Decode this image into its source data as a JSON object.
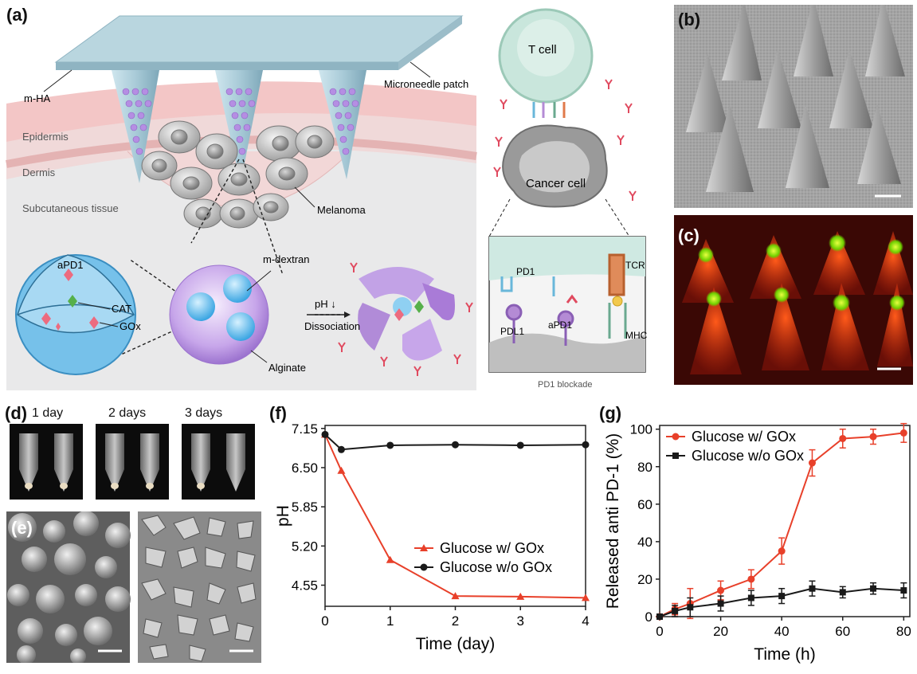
{
  "panels": {
    "a": "(a)",
    "b": "(b)",
    "c": "(c)",
    "d": "(d)",
    "e": "(e)",
    "f": "(f)",
    "g": "(g)"
  },
  "schematic": {
    "m_ha": "m-HA",
    "microneedle_patch": "Microneedle patch",
    "epidermis": "Epidermis",
    "dermis": "Dermis",
    "subcutaneous": "Subcutaneous tissue",
    "melanoma": "Melanoma",
    "apd1": "aPD1",
    "cat": "CAT",
    "gox": "GOx",
    "m_dextran": "m-dextran",
    "alginate": "Alginate",
    "ph": "pH ↓",
    "dissociation": "Dissociation",
    "t_cell": "T cell",
    "cancer_cell": "Cancer cell",
    "pd1": "PD1",
    "pdl1": "PDL1",
    "apd1_box": "aPD1",
    "tcr": "TCR",
    "mhc": "MHC",
    "pd1_blockade": "PD1 blockade"
  },
  "photos": {
    "day1": "1 day",
    "day2": "2 days",
    "day3": "3 days"
  },
  "colors": {
    "red": "#e8402a",
    "black": "#1a1a1a",
    "skin": "#f3c6c6",
    "bead": "#b18bd8",
    "blue": "#58b6e8"
  },
  "chart_data": [
    {
      "type": "line",
      "xlabel": "Time (day)",
      "ylabel": "pH",
      "xlim": [
        0,
        4
      ],
      "ylim": [
        4.2,
        7.2
      ],
      "x_ticks": [
        0,
        1,
        2,
        3,
        4
      ],
      "y_ticks": [
        "7.15",
        "6.50",
        "5.85",
        "5.20",
        "4.55"
      ],
      "y_tick_values": [
        7.15,
        6.5,
        5.85,
        5.2,
        4.55
      ],
      "legend_position": "center-right",
      "series": [
        {
          "name": "Glucose w/ GOx",
          "color": "#e8402a",
          "marker": "triangle",
          "x": [
            0,
            0.25,
            1,
            2,
            3,
            4
          ],
          "y": [
            7.05,
            6.45,
            4.97,
            4.37,
            4.36,
            4.34
          ]
        },
        {
          "name": "Glucose w/o GOx",
          "color": "#1a1a1a",
          "marker": "circle",
          "x": [
            0,
            0.25,
            1,
            2,
            3,
            4
          ],
          "y": [
            7.05,
            6.8,
            6.87,
            6.88,
            6.87,
            6.88
          ]
        }
      ]
    },
    {
      "type": "line",
      "xlabel": "Time (h)",
      "ylabel": "Released anti PD-1 (%)",
      "xlim": [
        0,
        82
      ],
      "ylim": [
        0,
        102
      ],
      "x_ticks": [
        0,
        20,
        40,
        60,
        80
      ],
      "y_ticks": [
        0,
        20,
        40,
        60,
        80,
        100
      ],
      "legend_position": "top-left",
      "series": [
        {
          "name": "Glucose w/ GOx",
          "color": "#e8402a",
          "marker": "circle",
          "x": [
            0,
            5,
            10,
            20,
            30,
            40,
            50,
            60,
            70,
            80
          ],
          "y": [
            0,
            4,
            7,
            14,
            20,
            35,
            82,
            95,
            96,
            98
          ],
          "err": [
            0,
            3,
            8,
            5,
            5,
            7,
            7,
            5,
            4,
            5
          ]
        },
        {
          "name": "Glucose w/o GOx",
          "color": "#1a1a1a",
          "marker": "square",
          "x": [
            0,
            5,
            10,
            20,
            30,
            40,
            50,
            60,
            70,
            80
          ],
          "y": [
            0,
            3,
            5,
            7,
            10,
            11,
            15,
            13,
            15,
            14
          ],
          "err": [
            0,
            3,
            5,
            4,
            4,
            4,
            4,
            3,
            3,
            4
          ]
        }
      ]
    }
  ]
}
